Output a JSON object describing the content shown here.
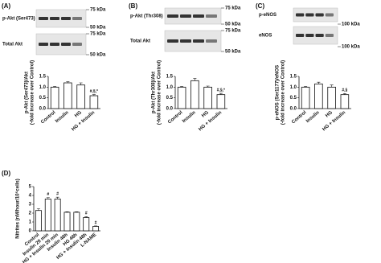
{
  "chart_data": [
    {
      "type": "bar",
      "panel": "(A)",
      "blots": [
        {
          "label": "p-Akt (Ser473)",
          "markers": [
            "75 kDa",
            "50 kDa"
          ]
        },
        {
          "label": "Total Akt",
          "markers": [
            "75 kDa",
            "50 kDa"
          ]
        }
      ],
      "ylabel": [
        "p-Akt (Ser473)/Akt",
        "(-fold increase over Control)"
      ],
      "categories": [
        "Control",
        "Insulin",
        "HG",
        "HG + Insulin"
      ],
      "values": [
        1.0,
        1.2,
        1.1,
        0.6
      ],
      "errors": [
        0.03,
        0.05,
        0.1,
        0.05
      ],
      "significance": [
        null,
        null,
        null,
        "#,§,*"
      ],
      "ylim": [
        0,
        1.5
      ],
      "yticks": [
        {
          "value": 0,
          "label": "0.0"
        },
        0.5,
        {
          "value": 1,
          "label": "1.0"
        },
        1.5
      ]
    },
    {
      "type": "bar",
      "panel": "(B)",
      "blots": [
        {
          "label": "p-Akt (Thr308)",
          "markers": [
            "75 kDa",
            "50 kDa"
          ]
        },
        {
          "label": "Total Akt",
          "markers": [
            "75 kDa",
            "50 kDa"
          ]
        }
      ],
      "ylabel": [
        "p-Akt (Thr308)/Akt",
        "(-fold increase over Control)"
      ],
      "categories": [
        "Control",
        "Insulin",
        "HG",
        "HG + Insulin"
      ],
      "values": [
        1.0,
        1.3,
        1.0,
        0.65
      ],
      "errors": [
        0.03,
        0.1,
        0.05,
        0.06
      ],
      "significance": [
        null,
        null,
        null,
        "#,§,*"
      ],
      "ylim": [
        0,
        1.5
      ],
      "yticks": [
        {
          "value": 0,
          "label": "0.0"
        },
        0.5,
        {
          "value": 1,
          "label": "1.0"
        },
        1.5
      ]
    },
    {
      "type": "bar",
      "panel": "(C)",
      "blots": [
        {
          "label": "p-eNOS",
          "markers": [
            "100 kDa"
          ]
        },
        {
          "label": "eNOS",
          "markers": [
            "100 kDa"
          ]
        }
      ],
      "ylabel": [
        "p-eNOS (Ser1177)/eNOS",
        "(-fold increase over Control)"
      ],
      "categories": [
        "Control",
        "Insulin",
        "HG",
        "HG + Insulin"
      ],
      "values": [
        1.0,
        1.15,
        1.0,
        0.65
      ],
      "errors": [
        0.03,
        0.08,
        0.1,
        0.05
      ],
      "significance": [
        null,
        null,
        null,
        "#,§"
      ],
      "ylim": [
        0,
        1.5
      ],
      "yticks": [
        {
          "value": 0,
          "label": "0.0"
        },
        0.5,
        {
          "value": 1,
          "label": "1.0"
        },
        1.5
      ]
    },
    {
      "type": "bar",
      "panel": "(D)",
      "ylabel": [
        "Nitrites (nM/hour/10⁵cells)"
      ],
      "categories": [
        "Control",
        "Insulin 20 min",
        "HG + Insulin 20 min",
        "Insulin 48h",
        "HG 48h",
        "HG + Insulin 48h",
        "L-NAME"
      ],
      "values": [
        2.3,
        3.6,
        3.6,
        2.1,
        2.1,
        1.5,
        0.5
      ],
      "errors": [
        0.2,
        0.15,
        0.2,
        0.05,
        0.05,
        0.1,
        0.05
      ],
      "significance": [
        null,
        "#",
        "#",
        null,
        null,
        "#",
        "#"
      ],
      "ylim": [
        0,
        5
      ],
      "yticks": [
        0,
        1,
        2,
        3,
        4,
        5
      ]
    }
  ]
}
